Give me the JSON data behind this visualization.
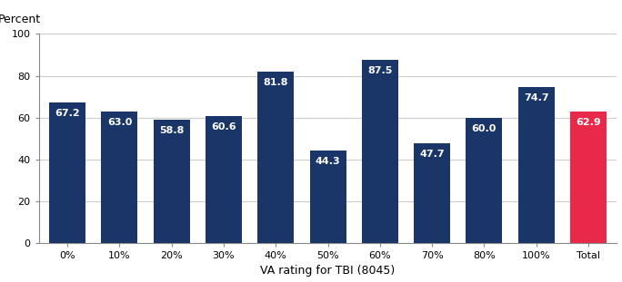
{
  "categories": [
    "0%",
    "10%",
    "20%",
    "30%",
    "40%",
    "50%",
    "60%",
    "70%",
    "80%",
    "100%",
    "Total"
  ],
  "values": [
    67.2,
    63.0,
    58.8,
    60.6,
    81.8,
    44.3,
    87.5,
    47.7,
    60.0,
    74.7,
    62.9
  ],
  "bar_colors": [
    "#1a3668",
    "#1a3668",
    "#1a3668",
    "#1a3668",
    "#1a3668",
    "#1a3668",
    "#1a3668",
    "#1a3668",
    "#1a3668",
    "#1a3668",
    "#e8294a"
  ],
  "ylabel": "Percent",
  "xlabel": "VA rating for TBI (8045)",
  "ylim": [
    0,
    100
  ],
  "yticks": [
    0,
    20,
    40,
    60,
    80,
    100
  ],
  "tick_fontsize": 8,
  "axis_label_fontsize": 9,
  "bar_label_color": "white",
  "bar_label_fontsize": 8,
  "bar_width": 0.7,
  "grid_color": "#cccccc",
  "spine_color": "#888888"
}
